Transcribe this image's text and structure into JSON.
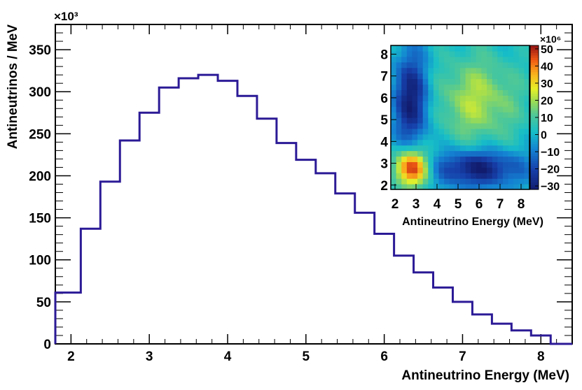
{
  "chart_data": [
    {
      "type": "histogram",
      "xlabel": "Antineutrino Energy (MeV)",
      "ylabel": "Antineutrinos / MeV",
      "y_multiplier_label": "×10³",
      "xlim": [
        1.8,
        8.4
      ],
      "ylim": [
        0,
        380
      ],
      "x_ticks": [
        "2",
        "3",
        "4",
        "5",
        "6",
        "7",
        "8"
      ],
      "y_ticks": [
        "0",
        "50",
        "100",
        "150",
        "200",
        "250",
        "300",
        "350"
      ],
      "bin_edges": [
        1.8,
        2.125,
        2.375,
        2.625,
        2.875,
        3.125,
        3.375,
        3.625,
        3.875,
        4.125,
        4.375,
        4.625,
        4.875,
        5.125,
        5.375,
        5.625,
        5.875,
        6.125,
        6.375,
        6.625,
        6.875,
        7.125,
        7.375,
        7.625,
        7.875,
        8.125,
        8.4
      ],
      "values": [
        61,
        137,
        193,
        242,
        275,
        305,
        316,
        320,
        313,
        295,
        268,
        239,
        219,
        203,
        179,
        156,
        131,
        105,
        85,
        67,
        50,
        35,
        24,
        16,
        10,
        0
      ],
      "line_color": "#2b1a96"
    },
    {
      "type": "heatmap",
      "xlabel": "Antineutrino Energy (MeV)",
      "colorbar_multiplier_label": "×10⁶",
      "xlim": [
        1.8,
        8.4
      ],
      "ylim": [
        1.8,
        8.4
      ],
      "x_ticks": [
        "2",
        "3",
        "4",
        "5",
        "6",
        "7",
        "8"
      ],
      "y_ticks": [
        "2",
        "3",
        "4",
        "5",
        "6",
        "7",
        "8"
      ],
      "colorbar_range": [
        -32,
        52
      ],
      "colorbar_ticks": [
        "50",
        "40",
        "30",
        "20",
        "10",
        "0",
        "−10",
        "−20",
        "−30"
      ],
      "grid_bins": 26,
      "model": "covariance matrix: block pattern with positive low-low and mid-mid regions, negative cross terms"
    }
  ]
}
